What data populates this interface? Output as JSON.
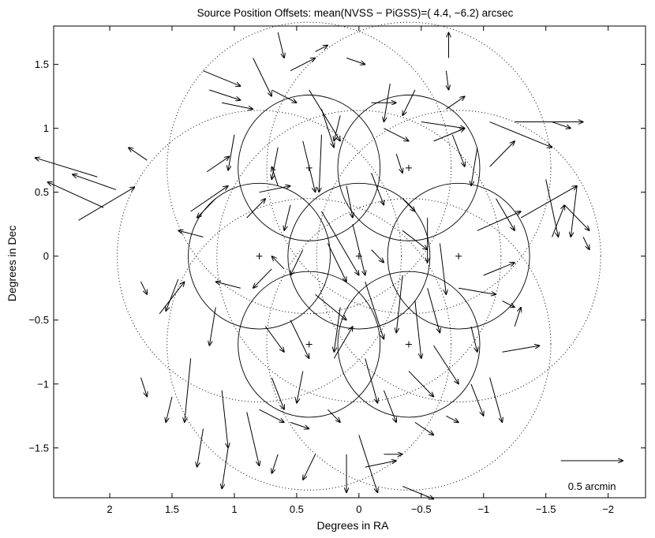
{
  "chart_data": {
    "type": "quiver",
    "title": "Source Position Offsets: mean(NVSS − PiGSS)=(  4.4,  −6.2) arcsec",
    "xlabel": "Degrees in RA",
    "ylabel": "Degrees in Dec",
    "xlim": [
      2.45,
      -2.3
    ],
    "ylim": [
      -1.89,
      1.8
    ],
    "x_reversed": true,
    "x_ticks": [
      2,
      1.5,
      1,
      0.5,
      0,
      -0.5,
      -1,
      -1.5,
      -2
    ],
    "x_tick_labels": [
      "2",
      "1.5",
      "1",
      "0.5",
      "0",
      "−0.5",
      "−1",
      "−1.5",
      "−2"
    ],
    "y_ticks": [
      1.5,
      1,
      0.5,
      0,
      -0.5,
      -1,
      -1.5
    ],
    "y_tick_labels": [
      "1.5",
      "1",
      "0.5",
      "0",
      "−0.5",
      "−1",
      "−1.5"
    ],
    "grid": false,
    "scale_arrow": {
      "label": "0.5 arcmin",
      "x": -1.62,
      "y": -1.6,
      "dx": -0.5,
      "dy": 0
    },
    "pointings": [
      {
        "x": 0,
        "y": 0
      },
      {
        "x": 0.8,
        "y": 0
      },
      {
        "x": -0.8,
        "y": 0
      },
      {
        "x": 0.4,
        "y": 0.69
      },
      {
        "x": -0.4,
        "y": 0.69
      },
      {
        "x": 0.4,
        "y": -0.69
      },
      {
        "x": -0.4,
        "y": -0.69
      }
    ],
    "primary_beam_radius_deg": 0.57,
    "outer_beam_radius_deg": 1.14,
    "mean_offset_arcsec": [
      4.4,
      -6.2
    ],
    "arrows": [
      {
        "x": 2.1,
        "y": 0.62,
        "dx": 0.5,
        "dy": 0.15
      },
      {
        "x": 2.05,
        "y": 0.38,
        "dx": 0.45,
        "dy": 0.2
      },
      {
        "x": 2.25,
        "y": 0.28,
        "dx": -0.45,
        "dy": 0.26
      },
      {
        "x": 1.95,
        "y": 0.52,
        "dx": 0.35,
        "dy": 0.12
      },
      {
        "x": 1.35,
        "y": 0.35,
        "dx": -0.3,
        "dy": 0.2
      },
      {
        "x": 1.22,
        "y": 0.66,
        "dx": -0.18,
        "dy": 0.12
      },
      {
        "x": 1.0,
        "y": 0.95,
        "dx": 0.05,
        "dy": -0.28
      },
      {
        "x": 1.15,
        "y": 0.45,
        "dx": 0.15,
        "dy": -0.15
      },
      {
        "x": 1.25,
        "y": 0.15,
        "dx": 0.2,
        "dy": 0.05
      },
      {
        "x": 1.45,
        "y": -0.18,
        "dx": 0.1,
        "dy": -0.25
      },
      {
        "x": 1.6,
        "y": -0.45,
        "dx": -0.2,
        "dy": 0.25
      },
      {
        "x": 1.35,
        "y": -0.8,
        "dx": 0.05,
        "dy": -0.5
      },
      {
        "x": 1.25,
        "y": -1.35,
        "dx": 0.05,
        "dy": -0.3
      },
      {
        "x": 1.1,
        "y": -1.05,
        "dx": -0.05,
        "dy": -0.45
      },
      {
        "x": 1.05,
        "y": -1.5,
        "dx": 0.05,
        "dy": -0.32
      },
      {
        "x": 0.9,
        "y": -1.22,
        "dx": -0.1,
        "dy": -0.42
      },
      {
        "x": 0.85,
        "y": 1.55,
        "dx": -0.15,
        "dy": -0.3
      },
      {
        "x": 1.25,
        "y": 1.45,
        "dx": -0.3,
        "dy": -0.12
      },
      {
        "x": 1.2,
        "y": 1.3,
        "dx": -0.25,
        "dy": -0.08
      },
      {
        "x": 1.1,
        "y": 1.2,
        "dx": -0.25,
        "dy": -0.05
      },
      {
        "x": 0.7,
        "y": 1.3,
        "dx": -0.2,
        "dy": -0.1
      },
      {
        "x": 0.55,
        "y": 1.45,
        "dx": -0.2,
        "dy": 0.1
      },
      {
        "x": 0.4,
        "y": 1.3,
        "dx": -0.25,
        "dy": -0.4
      },
      {
        "x": 0.3,
        "y": 1.15,
        "dx": -0.1,
        "dy": -0.3
      },
      {
        "x": 0.65,
        "y": 0.85,
        "dx": 0.05,
        "dy": -0.25
      },
      {
        "x": 0.45,
        "y": 0.9,
        "dx": -0.1,
        "dy": -0.4
      },
      {
        "x": 0.3,
        "y": 0.95,
        "dx": 0.02,
        "dy": -0.45
      },
      {
        "x": 0.15,
        "y": 1.1,
        "dx": 0.05,
        "dy": -0.2
      },
      {
        "x": 0.65,
        "y": 0.55,
        "dx": 0.05,
        "dy": 0.15
      },
      {
        "x": 0.8,
        "y": 0.5,
        "dx": -0.25,
        "dy": 0.05
      },
      {
        "x": 0.9,
        "y": 0.3,
        "dx": -0.15,
        "dy": 0.15
      },
      {
        "x": 0.55,
        "y": 0.4,
        "dx": 0.05,
        "dy": -0.2
      },
      {
        "x": 0.3,
        "y": 0.35,
        "dx": -0.3,
        "dy": -0.5
      },
      {
        "x": 0.1,
        "y": 0.55,
        "dx": -0.05,
        "dy": -0.25
      },
      {
        "x": -0.1,
        "y": 0.65,
        "dx": -0.1,
        "dy": -0.25
      },
      {
        "x": -0.3,
        "y": 0.8,
        "dx": -0.05,
        "dy": -0.15
      },
      {
        "x": -0.5,
        "y": 1.05,
        "dx": -0.35,
        "dy": -0.05
      },
      {
        "x": -0.7,
        "y": 1.15,
        "dx": -0.15,
        "dy": 0.1
      },
      {
        "x": -0.75,
        "y": 0.95,
        "dx": -0.1,
        "dy": -0.25
      },
      {
        "x": -0.6,
        "y": 0.9,
        "dx": -0.25,
        "dy": 0.1
      },
      {
        "x": -0.45,
        "y": 1.3,
        "dx": 0.1,
        "dy": -0.2
      },
      {
        "x": -0.25,
        "y": 1.35,
        "dx": 0.05,
        "dy": -0.3
      },
      {
        "x": -0.7,
        "y": 1.45,
        "dx": -0.02,
        "dy": -0.15
      },
      {
        "x": -0.72,
        "y": 1.55,
        "dx": 0.0,
        "dy": 0.2
      },
      {
        "x": -1.05,
        "y": 1.05,
        "dx": -0.5,
        "dy": -0.2
      },
      {
        "x": -1.25,
        "y": 1.05,
        "dx": -0.55,
        "dy": 0.0
      },
      {
        "x": -1.55,
        "y": 1.05,
        "dx": -0.15,
        "dy": -0.05
      },
      {
        "x": -0.95,
        "y": 0.85,
        "dx": 0.05,
        "dy": -0.3
      },
      {
        "x": -1.05,
        "y": 0.7,
        "dx": -0.2,
        "dy": 0.2
      },
      {
        "x": -1.5,
        "y": 0.6,
        "dx": -0.1,
        "dy": -0.45
      },
      {
        "x": -1.75,
        "y": 0.55,
        "dx": 0.05,
        "dy": -0.4
      },
      {
        "x": -1.1,
        "y": 0.45,
        "dx": -0.15,
        "dy": -0.25
      },
      {
        "x": -0.95,
        "y": 0.2,
        "dx": -0.35,
        "dy": 0.15
      },
      {
        "x": -1.3,
        "y": 0.3,
        "dx": -0.45,
        "dy": 0.25
      },
      {
        "x": -1.55,
        "y": 0.15,
        "dx": -0.1,
        "dy": 0.25
      },
      {
        "x": -0.55,
        "y": 0.3,
        "dx": 0.0,
        "dy": -0.35
      },
      {
        "x": -0.65,
        "y": 0.1,
        "dx": -0.05,
        "dy": -0.4
      },
      {
        "x": -0.35,
        "y": 0.2,
        "dx": -0.2,
        "dy": -0.15
      },
      {
        "x": 0.05,
        "y": 0.25,
        "dx": -0.1,
        "dy": -0.4
      },
      {
        "x": 0.25,
        "y": 0.1,
        "dx": -0.15,
        "dy": -0.3
      },
      {
        "x": 0.45,
        "y": 0.05,
        "dx": 0.1,
        "dy": -0.2
      },
      {
        "x": 0.7,
        "y": -0.1,
        "dx": 0.15,
        "dy": -0.15
      },
      {
        "x": 0.95,
        "y": -0.25,
        "dx": 0.2,
        "dy": 0.05
      },
      {
        "x": 1.15,
        "y": -0.4,
        "dx": 0.05,
        "dy": -0.3
      },
      {
        "x": 0.75,
        "y": -0.55,
        "dx": -0.15,
        "dy": -0.2
      },
      {
        "x": 0.55,
        "y": -0.5,
        "dx": -0.15,
        "dy": -0.3
      },
      {
        "x": 0.35,
        "y": -0.3,
        "dx": -0.25,
        "dy": -0.2
      },
      {
        "x": 0.15,
        "y": -0.4,
        "dx": 0.05,
        "dy": -0.35
      },
      {
        "x": -0.05,
        "y": -0.2,
        "dx": -0.15,
        "dy": -0.45
      },
      {
        "x": -0.35,
        "y": -0.15,
        "dx": 0.05,
        "dy": -0.45
      },
      {
        "x": -0.45,
        "y": -0.35,
        "dx": -0.05,
        "dy": -0.45
      },
      {
        "x": -0.55,
        "y": -0.25,
        "dx": -0.1,
        "dy": -0.35
      },
      {
        "x": -0.8,
        "y": -0.25,
        "dx": -0.3,
        "dy": -0.05
      },
      {
        "x": -1.0,
        "y": -0.15,
        "dx": -0.25,
        "dy": 0.1
      },
      {
        "x": -1.15,
        "y": -0.35,
        "dx": -0.1,
        "dy": -0.05
      },
      {
        "x": -0.9,
        "y": -0.55,
        "dx": -0.05,
        "dy": -0.2
      },
      {
        "x": -0.6,
        "y": -0.7,
        "dx": -0.2,
        "dy": -0.3
      },
      {
        "x": -0.4,
        "y": -0.9,
        "dx": -0.2,
        "dy": -0.2
      },
      {
        "x": -0.2,
        "y": -1.05,
        "dx": -0.1,
        "dy": -0.25
      },
      {
        "x": -0.05,
        "y": -0.8,
        "dx": -0.1,
        "dy": -0.35
      },
      {
        "x": 0.2,
        "y": -0.8,
        "dx": -0.15,
        "dy": 0.25
      },
      {
        "x": 0.45,
        "y": -0.9,
        "dx": 0.05,
        "dy": -0.25
      },
      {
        "x": 0.7,
        "y": -0.95,
        "dx": -0.1,
        "dy": -0.25
      },
      {
        "x": 0.8,
        "y": -1.2,
        "dx": -0.2,
        "dy": -0.1
      },
      {
        "x": 0.55,
        "y": -1.3,
        "dx": -0.15,
        "dy": -0.05
      },
      {
        "x": 0.25,
        "y": -1.2,
        "dx": -0.1,
        "dy": -0.1
      },
      {
        "x": 0.0,
        "y": -1.4,
        "dx": -0.15,
        "dy": -0.45
      },
      {
        "x": -0.05,
        "y": -1.65,
        "dx": -0.25,
        "dy": 0.05
      },
      {
        "x": -0.2,
        "y": -1.55,
        "dx": -0.15,
        "dy": 0.0
      },
      {
        "x": -0.45,
        "y": -1.3,
        "dx": -0.15,
        "dy": -0.1
      },
      {
        "x": -0.7,
        "y": -1.25,
        "dx": -0.1,
        "dy": -0.05
      },
      {
        "x": -0.9,
        "y": -1.0,
        "dx": -0.1,
        "dy": -0.25
      },
      {
        "x": -1.05,
        "y": -0.95,
        "dx": -0.1,
        "dy": -0.35
      },
      {
        "x": -1.15,
        "y": -0.75,
        "dx": -0.3,
        "dy": 0.05
      },
      {
        "x": -1.25,
        "y": -0.55,
        "dx": -0.05,
        "dy": 0.15
      },
      {
        "x": -0.35,
        "y": -1.8,
        "dx": -0.25,
        "dy": -0.1
      },
      {
        "x": 0.1,
        "y": -1.55,
        "dx": 0.0,
        "dy": -0.3
      },
      {
        "x": 0.35,
        "y": -1.55,
        "dx": 0.1,
        "dy": -0.2
      },
      {
        "x": 0.65,
        "y": -1.55,
        "dx": 0.05,
        "dy": -0.15
      },
      {
        "x": 1.5,
        "y": -1.1,
        "dx": 0.05,
        "dy": -0.2
      },
      {
        "x": 1.75,
        "y": -0.95,
        "dx": -0.05,
        "dy": -0.15
      },
      {
        "x": 0.65,
        "y": 1.75,
        "dx": -0.05,
        "dy": -0.2
      },
      {
        "x": 0.35,
        "y": 1.6,
        "dx": -0.1,
        "dy": 0.05
      },
      {
        "x": 0.1,
        "y": 1.55,
        "dx": -0.15,
        "dy": -0.05
      },
      {
        "x": -0.1,
        "y": 1.2,
        "dx": -0.2,
        "dy": 0.0
      },
      {
        "x": -0.2,
        "y": 1.0,
        "dx": -0.2,
        "dy": -0.1
      },
      {
        "x": -0.35,
        "y": 0.45,
        "dx": -0.1,
        "dy": -0.1
      },
      {
        "x": -1.8,
        "y": 0.15,
        "dx": -0.05,
        "dy": -0.1
      },
      {
        "x": -1.65,
        "y": 0.4,
        "dx": -0.2,
        "dy": -0.2
      },
      {
        "x": 1.75,
        "y": -0.2,
        "dx": -0.05,
        "dy": -0.1
      },
      {
        "x": 1.7,
        "y": 0.75,
        "dx": 0.15,
        "dy": 0.1
      },
      {
        "x": -0.1,
        "y": 0.05,
        "dx": -0.1,
        "dy": -0.1
      },
      {
        "x": 0.6,
        "y": -0.1,
        "dx": 0.1,
        "dy": 0.1
      }
    ]
  }
}
